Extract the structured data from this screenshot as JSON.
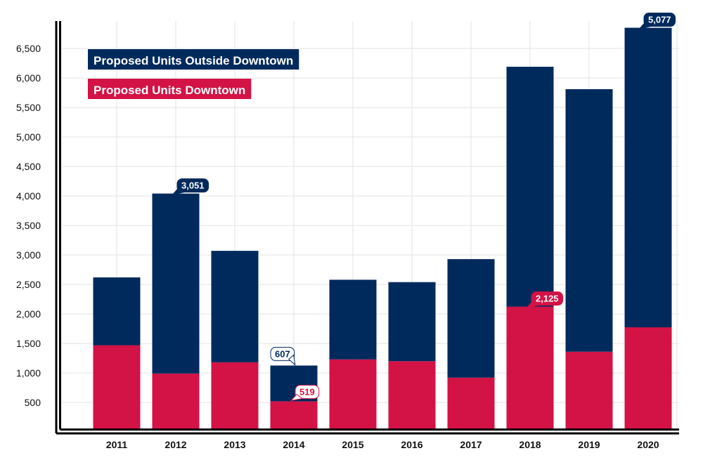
{
  "chart_data": {
    "type": "bar",
    "stacked": true,
    "title": "",
    "xlabel": "",
    "ylabel": "",
    "categories": [
      "2011",
      "2012",
      "2013",
      "2014",
      "2015",
      "2016",
      "2017",
      "2018",
      "2019",
      "2020"
    ],
    "series": [
      {
        "name": "Proposed Units Downtown",
        "color": "#d31245",
        "values": [
          1470,
          990,
          1180,
          519,
          1230,
          1200,
          920,
          2125,
          1360,
          1774
        ]
      },
      {
        "name": "Proposed Units Outside Downtown",
        "color": "#002a5c",
        "values": [
          1150,
          3051,
          1890,
          607,
          1350,
          1340,
          2010,
          4065,
          4450,
          5077
        ]
      }
    ],
    "ylim": [
      0,
      6900
    ],
    "yticks": [
      500,
      1000,
      1500,
      2000,
      2500,
      3000,
      3500,
      4000,
      4500,
      5000,
      5500,
      6000,
      6500
    ],
    "ytick_labels": [
      "500",
      "1,000",
      "1,500",
      "2,000",
      "2,500",
      "3,000",
      "3,500",
      "4,000",
      "4,500",
      "5,000",
      "5,500",
      "6,000",
      "6,500"
    ],
    "grid": true,
    "legend_placement": "top-left",
    "annotations": [
      {
        "category": "2012",
        "series": 1,
        "text": "3,051",
        "style": "dark"
      },
      {
        "category": "2014",
        "series": 1,
        "text": "607",
        "style": "outline-dark"
      },
      {
        "category": "2014",
        "series": 0,
        "text": "519",
        "style": "outline-red"
      },
      {
        "category": "2018",
        "series": 0,
        "text": "2,125",
        "style": "red"
      },
      {
        "category": "2020",
        "series": 1,
        "text": "5,077",
        "style": "dark"
      }
    ]
  }
}
